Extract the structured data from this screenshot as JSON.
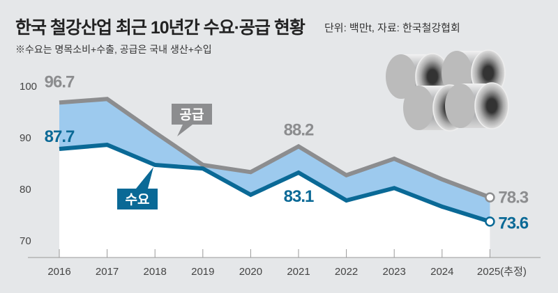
{
  "title": "한국 철강산업 최근 10년간 수요·공급 현황",
  "unit_source": "단위: 백만t, 자료: 한국철강협회",
  "note": "※수요는 명목소비+수출, 공급은 국내 생산+수입",
  "colors": {
    "supply": "#8c8d8f",
    "demand": "#0a6996",
    "gap_fill": "#9dcaee",
    "background": "#e5e7e9"
  },
  "chart_data": {
    "type": "line",
    "categories": [
      "2016",
      "2017",
      "2018",
      "2019",
      "2020",
      "2021",
      "2022",
      "2023",
      "2024",
      "2025(추정)"
    ],
    "ylim": [
      65,
      105
    ],
    "yticks": [
      70,
      80,
      90,
      100
    ],
    "series": [
      {
        "name": "공급",
        "values": [
          96.7,
          97.4,
          90.9,
          84.6,
          83.2,
          88.2,
          82.6,
          85.8,
          81.8,
          78.3
        ],
        "labels": {
          "0": "96.7",
          "5": "88.2",
          "9": "78.3"
        }
      },
      {
        "name": "수요",
        "values": [
          87.7,
          88.5,
          84.6,
          83.9,
          78.8,
          83.1,
          77.7,
          80.1,
          76.5,
          73.6
        ],
        "labels": {
          "0": "87.7",
          "5": "83.1",
          "9": "73.6"
        }
      }
    ],
    "fill_between": true,
    "grid": false,
    "image": "steel-coils-illustration"
  }
}
